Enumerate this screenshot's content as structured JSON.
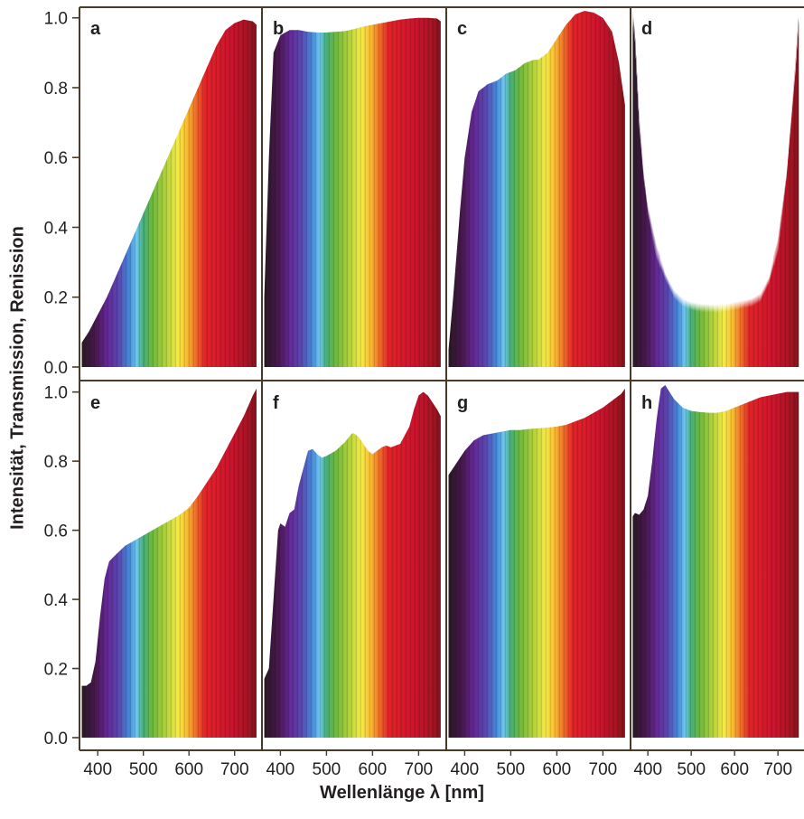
{
  "figure": {
    "ylabel": "Intensität, Transmission, Renission",
    "xlabel": "Wellenlänge λ [nm]",
    "y_ticks": [
      "0.0",
      "0.2",
      "0.4",
      "0.6",
      "0.8",
      "1.0"
    ],
    "x_ticks": [
      "400",
      "500",
      "600",
      "700"
    ],
    "colors": {
      "frame": "#4a3a2a",
      "text": "#231f20",
      "background": "#ffffff"
    }
  },
  "chart_data": [
    {
      "panel": "a",
      "type": "area",
      "xlim": [
        360,
        760
      ],
      "ylim": [
        0,
        1.02
      ],
      "x": [
        365,
        380,
        400,
        420,
        440,
        460,
        480,
        500,
        520,
        540,
        560,
        580,
        600,
        620,
        640,
        660,
        680,
        700,
        720,
        740,
        748
      ],
      "y": [
        0.07,
        0.1,
        0.15,
        0.2,
        0.26,
        0.32,
        0.38,
        0.44,
        0.5,
        0.56,
        0.62,
        0.68,
        0.74,
        0.8,
        0.86,
        0.92,
        0.965,
        0.985,
        0.995,
        0.99,
        0.98
      ]
    },
    {
      "panel": "b",
      "type": "area",
      "xlim": [
        360,
        760
      ],
      "ylim": [
        0,
        1.02
      ],
      "x": [
        365,
        375,
        385,
        400,
        420,
        440,
        460,
        480,
        500,
        520,
        540,
        560,
        580,
        600,
        620,
        640,
        660,
        680,
        700,
        720,
        740,
        748
      ],
      "y": [
        0.2,
        0.6,
        0.9,
        0.95,
        0.965,
        0.965,
        0.96,
        0.958,
        0.958,
        0.96,
        0.962,
        0.968,
        0.975,
        0.98,
        0.985,
        0.99,
        0.995,
        0.998,
        1.0,
        1.0,
        0.998,
        0.99
      ]
    },
    {
      "panel": "c",
      "type": "area",
      "xlim": [
        360,
        760
      ],
      "ylim": [
        0,
        1.02
      ],
      "x": [
        365,
        375,
        390,
        400,
        415,
        430,
        450,
        470,
        490,
        510,
        530,
        550,
        560,
        580,
        600,
        620,
        640,
        660,
        680,
        700,
        720,
        735,
        748
      ],
      "y": [
        0.05,
        0.2,
        0.45,
        0.6,
        0.73,
        0.79,
        0.81,
        0.82,
        0.84,
        0.85,
        0.87,
        0.88,
        0.88,
        0.9,
        0.94,
        0.98,
        1.01,
        1.02,
        1.015,
        1.0,
        0.96,
        0.87,
        0.75
      ]
    },
    {
      "panel": "d",
      "type": "area",
      "xlim": [
        360,
        760
      ],
      "ylim": [
        0,
        1.02
      ],
      "x": [
        365,
        370,
        380,
        390,
        400,
        420,
        440,
        460,
        480,
        500,
        520,
        540,
        560,
        580,
        600,
        620,
        640,
        660,
        680,
        700,
        720,
        740,
        748
      ],
      "y": [
        1.0,
        0.95,
        0.7,
        0.55,
        0.45,
        0.33,
        0.26,
        0.21,
        0.185,
        0.175,
        0.17,
        0.168,
        0.168,
        0.17,
        0.175,
        0.18,
        0.185,
        0.2,
        0.25,
        0.35,
        0.55,
        0.85,
        1.0
      ]
    },
    {
      "panel": "e",
      "type": "area",
      "xlim": [
        360,
        760
      ],
      "ylim": [
        0,
        1.02
      ],
      "x": [
        365,
        375,
        385,
        395,
        405,
        415,
        425,
        440,
        460,
        480,
        500,
        520,
        540,
        560,
        580,
        600,
        620,
        640,
        660,
        680,
        700,
        720,
        740,
        748
      ],
      "y": [
        0.15,
        0.15,
        0.16,
        0.22,
        0.35,
        0.46,
        0.51,
        0.53,
        0.555,
        0.57,
        0.585,
        0.6,
        0.615,
        0.63,
        0.645,
        0.665,
        0.7,
        0.74,
        0.78,
        0.83,
        0.88,
        0.93,
        0.99,
        1.01
      ]
    },
    {
      "panel": "f",
      "type": "area",
      "xlim": [
        360,
        760
      ],
      "ylim": [
        0,
        1.02
      ],
      "x": [
        365,
        375,
        385,
        395,
        400,
        410,
        420,
        430,
        440,
        450,
        460,
        470,
        480,
        490,
        500,
        520,
        540,
        555,
        560,
        570,
        580,
        590,
        600,
        620,
        630,
        640,
        660,
        680,
        690,
        700,
        710,
        720,
        730,
        740,
        748
      ],
      "y": [
        0.17,
        0.2,
        0.4,
        0.6,
        0.62,
        0.61,
        0.65,
        0.66,
        0.73,
        0.78,
        0.83,
        0.835,
        0.82,
        0.81,
        0.815,
        0.83,
        0.855,
        0.88,
        0.88,
        0.87,
        0.85,
        0.83,
        0.82,
        0.84,
        0.845,
        0.84,
        0.85,
        0.9,
        0.95,
        0.99,
        1.0,
        0.99,
        0.97,
        0.95,
        0.93
      ]
    },
    {
      "panel": "g",
      "type": "area",
      "xlim": [
        360,
        760
      ],
      "ylim": [
        0,
        1.02
      ],
      "x": [
        365,
        370,
        380,
        390,
        400,
        420,
        440,
        460,
        480,
        500,
        520,
        540,
        560,
        580,
        600,
        620,
        640,
        660,
        680,
        700,
        720,
        740,
        748
      ],
      "y": [
        0.76,
        0.77,
        0.79,
        0.81,
        0.83,
        0.86,
        0.875,
        0.88,
        0.885,
        0.89,
        0.89,
        0.893,
        0.895,
        0.897,
        0.9,
        0.905,
        0.915,
        0.925,
        0.94,
        0.955,
        0.975,
        0.995,
        1.01
      ]
    },
    {
      "panel": "h",
      "type": "area",
      "xlim": [
        360,
        760
      ],
      "ylim": [
        0,
        1.02
      ],
      "x": [
        365,
        370,
        380,
        390,
        400,
        410,
        420,
        430,
        440,
        450,
        460,
        480,
        500,
        520,
        540,
        560,
        580,
        600,
        620,
        640,
        660,
        680,
        700,
        720,
        740,
        748
      ],
      "y": [
        0.64,
        0.65,
        0.645,
        0.66,
        0.7,
        0.8,
        0.92,
        1.01,
        1.02,
        1.0,
        0.98,
        0.955,
        0.945,
        0.942,
        0.94,
        0.94,
        0.945,
        0.955,
        0.965,
        0.975,
        0.985,
        0.99,
        0.995,
        1.0,
        1.0,
        1.0
      ]
    }
  ]
}
